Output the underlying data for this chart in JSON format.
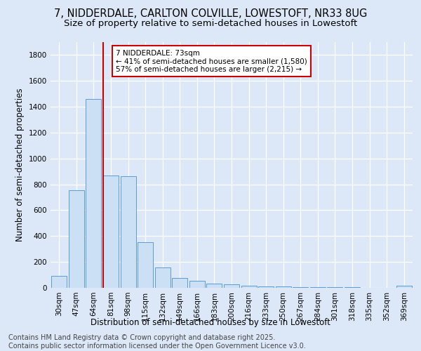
{
  "title_line1": "7, NIDDERDALE, CARLTON COLVILLE, LOWESTOFT, NR33 8UG",
  "title_line2": "Size of property relative to semi-detached houses in Lowestoft",
  "xlabel": "Distribution of semi-detached houses by size in Lowestoft",
  "ylabel": "Number of semi-detached properties",
  "categories": [
    "30sqm",
    "47sqm",
    "64sqm",
    "81sqm",
    "98sqm",
    "115sqm",
    "132sqm",
    "149sqm",
    "166sqm",
    "183sqm",
    "200sqm",
    "216sqm",
    "233sqm",
    "250sqm",
    "267sqm",
    "284sqm",
    "301sqm",
    "318sqm",
    "335sqm",
    "352sqm",
    "369sqm"
  ],
  "values": [
    90,
    755,
    1460,
    870,
    865,
    355,
    155,
    75,
    55,
    35,
    25,
    18,
    10,
    10,
    5,
    5,
    3,
    3,
    2,
    2,
    15
  ],
  "bar_color": "#cce0f5",
  "bar_edge_color": "#5b9bd5",
  "vline_x": 2.54,
  "vline_color": "#cc0000",
  "annotation_text": "7 NIDDERDALE: 73sqm\n← 41% of semi-detached houses are smaller (1,580)\n57% of semi-detached houses are larger (2,215) →",
  "annotation_box_color": "#ffffff",
  "annotation_box_edge": "#cc0000",
  "ylim": [
    0,
    1900
  ],
  "yticks": [
    0,
    200,
    400,
    600,
    800,
    1000,
    1200,
    1400,
    1600,
    1800
  ],
  "background_color": "#dce8f8",
  "footer_line1": "Contains HM Land Registry data © Crown copyright and database right 2025.",
  "footer_line2": "Contains public sector information licensed under the Open Government Licence v3.0.",
  "title_fontsize": 10.5,
  "subtitle_fontsize": 9.5,
  "axis_label_fontsize": 8.5,
  "tick_fontsize": 7.5,
  "footer_fontsize": 7
}
